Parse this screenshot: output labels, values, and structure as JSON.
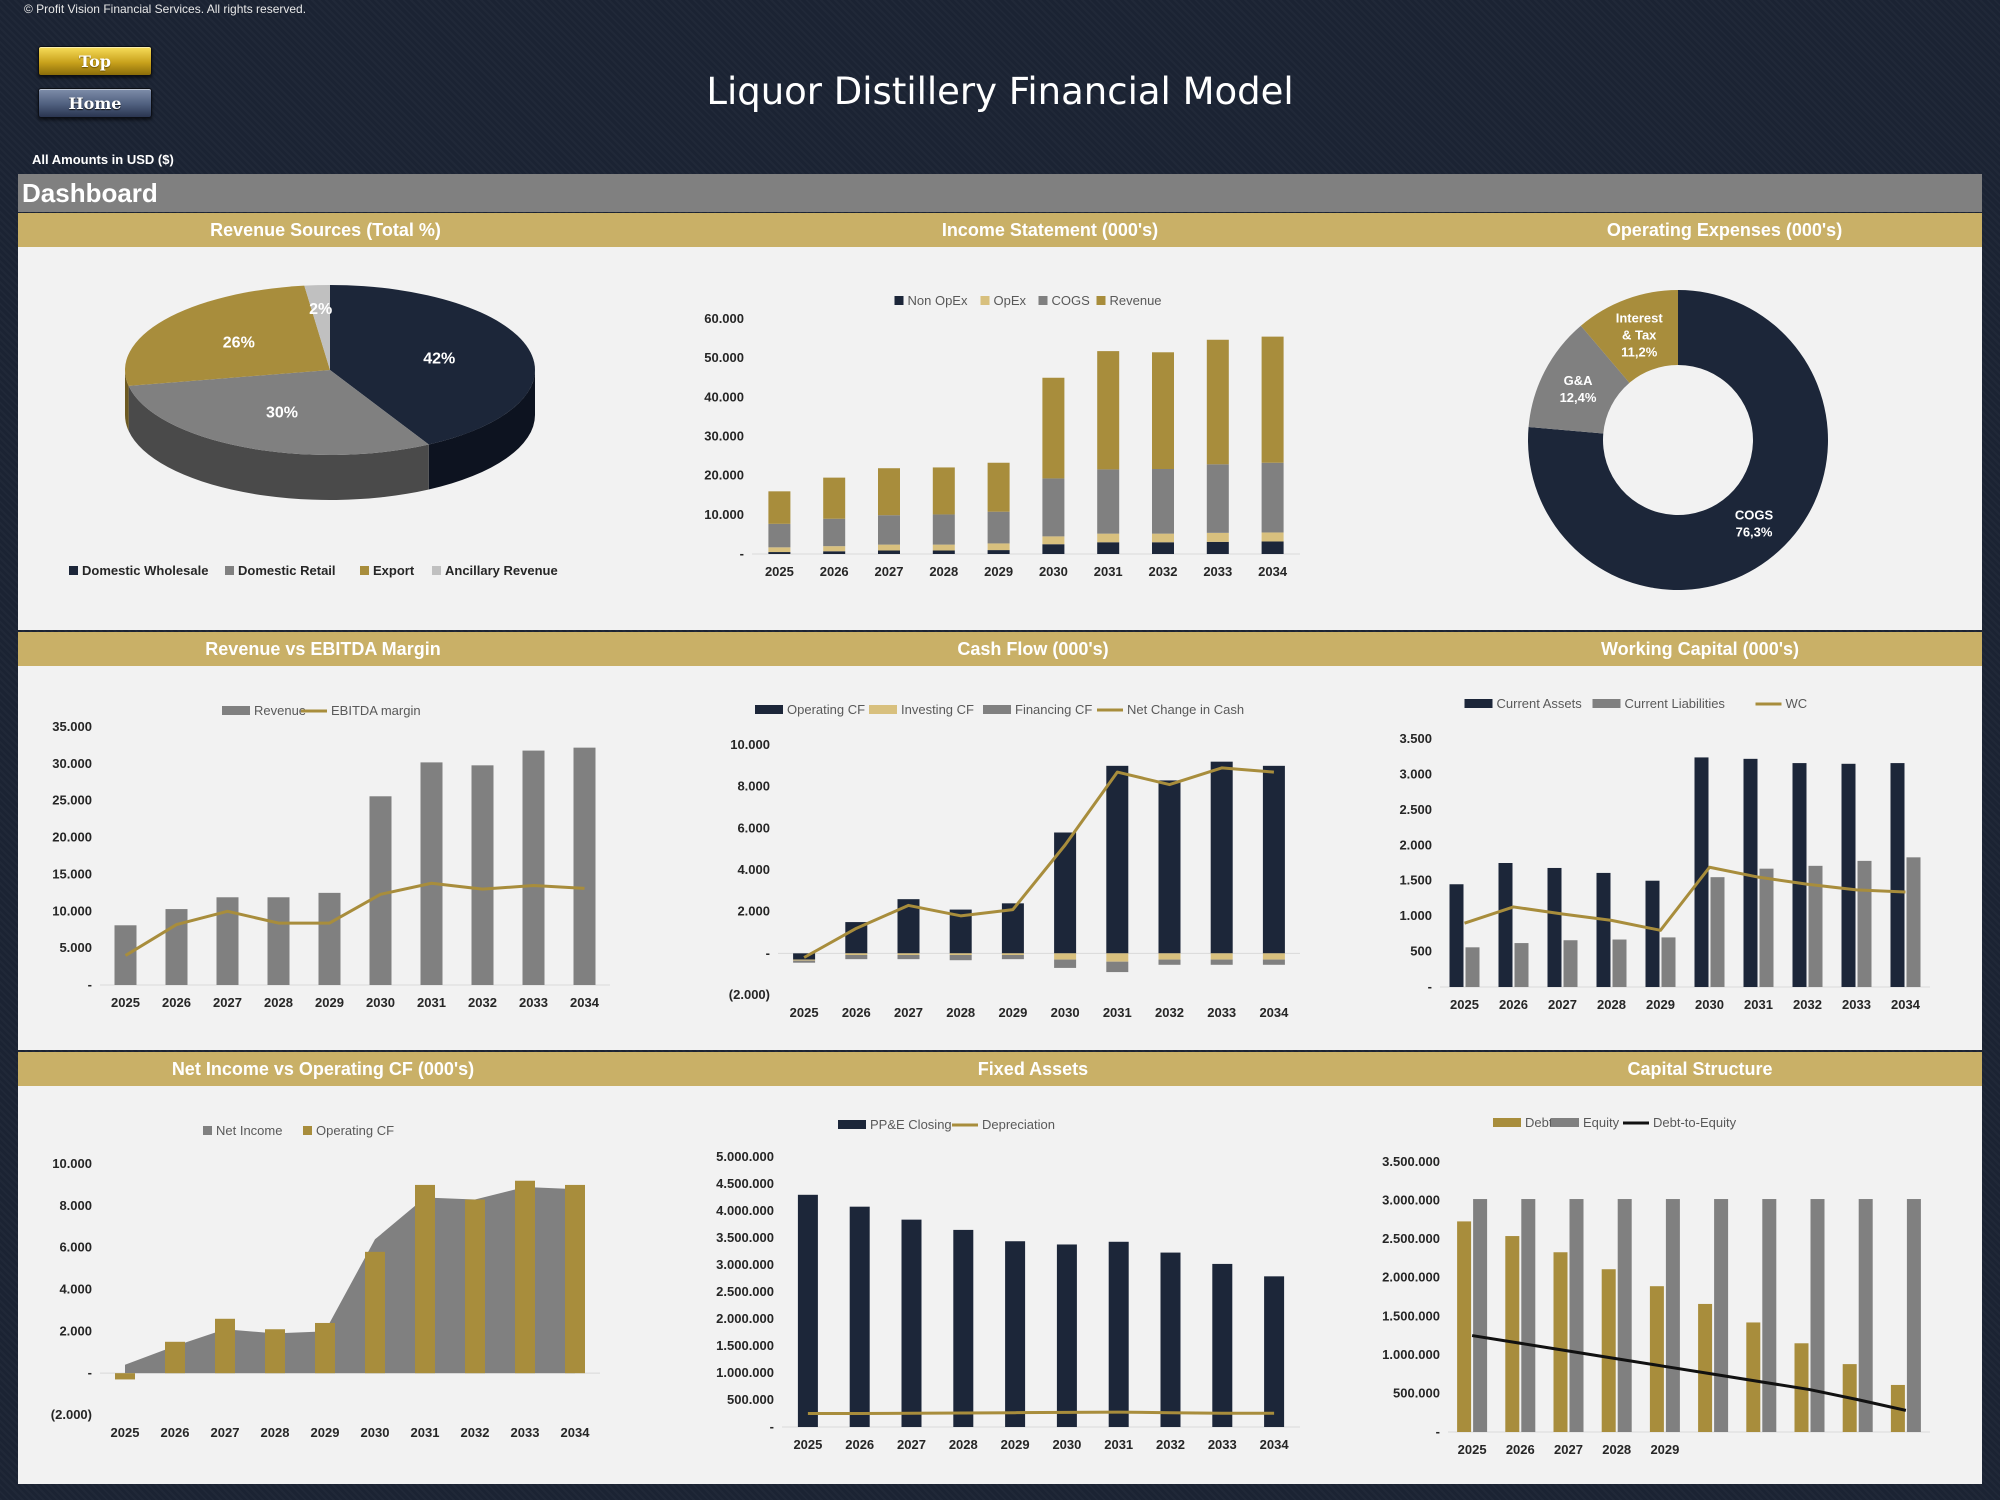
{
  "copyright": "© Profit Vision Financial Services. All rights reserved.",
  "nav": {
    "top_label": "Top",
    "home_label": "Home"
  },
  "title": "Liquor Distillery Financial Model",
  "currency_note": "All Amounts in  USD ($)",
  "dashboard_label": "Dashboard",
  "colors": {
    "navy": "#1c2639",
    "gold": "#a88d3c",
    "gray": "#808080",
    "lightgold": "#d8c07e",
    "lightgray": "#c0c0c0",
    "band": "#c9b067"
  },
  "chart_data": [
    {
      "id": "revenue_sources",
      "type": "pie",
      "title": "Revenue Sources (Total %)",
      "categories": [
        "Domestic Wholesale",
        "Domestic Retail",
        "Export",
        "Ancillary Revenue"
      ],
      "values": [
        42,
        30,
        26,
        2
      ],
      "labels": [
        "42%",
        "30%",
        "26%",
        "2%"
      ],
      "legend": "bottom"
    },
    {
      "id": "income_statement",
      "type": "bar",
      "stacked": true,
      "title": "Income Statement (000's)",
      "categories": [
        "2025",
        "2026",
        "2027",
        "2028",
        "2029",
        "2030",
        "2031",
        "2032",
        "2033",
        "2034"
      ],
      "series": [
        {
          "name": "Non OpEx",
          "values": [
            500,
            700,
            900,
            900,
            1000,
            2500,
            3000,
            3000,
            3100,
            3200
          ]
        },
        {
          "name": "OpEx",
          "values": [
            1200,
            1300,
            1500,
            1500,
            1700,
            2000,
            2200,
            2200,
            2300,
            2300
          ]
        },
        {
          "name": "COGS",
          "values": [
            6000,
            7000,
            7500,
            7700,
            8100,
            14800,
            16400,
            16500,
            17500,
            17800
          ]
        },
        {
          "name": "Revenue",
          "values": [
            8300,
            10500,
            12000,
            12000,
            12500,
            25700,
            30200,
            29800,
            31800,
            32200
          ]
        }
      ],
      "yticks": [
        0,
        10000,
        20000,
        30000,
        40000,
        50000,
        60000
      ],
      "ytick_labels": [
        "-",
        "10.000",
        "20.000",
        "30.000",
        "40.000",
        "50.000",
        "60.000"
      ],
      "ylim": [
        0,
        60000
      ],
      "legend": "top"
    },
    {
      "id": "operating_expenses",
      "type": "pie",
      "donut": true,
      "title": "Operating Expenses (000's)",
      "categories": [
        "COGS",
        "G&A",
        "Interest & Tax"
      ],
      "values": [
        76.3,
        12.4,
        11.2
      ],
      "labels": [
        [
          "COGS",
          "76,3%"
        ],
        [
          "G&A",
          "12,4%"
        ],
        [
          "Interest",
          "& Tax",
          "11,2%"
        ]
      ]
    },
    {
      "id": "revenue_vs_ebitda",
      "type": "bar",
      "title": "Revenue vs EBITDA Margin",
      "categories": [
        "2025",
        "2026",
        "2027",
        "2028",
        "2029",
        "2030",
        "2031",
        "2032",
        "2033",
        "2034"
      ],
      "series": [
        {
          "name": "Revenue",
          "kind": "bar",
          "values": [
            8100,
            10300,
            11900,
            11900,
            12500,
            25600,
            30200,
            29800,
            31800,
            32200
          ]
        },
        {
          "name": "EBITDA margin",
          "kind": "line",
          "values": [
            4000,
            8200,
            10000,
            8400,
            8400,
            12300,
            13800,
            13000,
            13500,
            13100
          ]
        }
      ],
      "yticks": [
        0,
        5000,
        10000,
        15000,
        20000,
        25000,
        30000,
        35000
      ],
      "ytick_labels": [
        "-",
        "5.000",
        "10.000",
        "15.000",
        "20.000",
        "25.000",
        "30.000",
        "35.000"
      ],
      "ylim": [
        0,
        35000
      ],
      "legend": "top"
    },
    {
      "id": "cash_flow",
      "type": "bar",
      "title": "Cash Flow (000's)",
      "categories": [
        "2025",
        "2026",
        "2027",
        "2028",
        "2029",
        "2030",
        "2031",
        "2032",
        "2033",
        "2034"
      ],
      "series": [
        {
          "name": "Operating CF",
          "kind": "bar",
          "values": [
            -300,
            1500,
            2600,
            2100,
            2400,
            5800,
            9000,
            8300,
            9200,
            9000
          ]
        },
        {
          "name": "Investing CF",
          "kind": "bar",
          "values": [
            -50,
            -80,
            -80,
            -80,
            -80,
            -300,
            -400,
            -300,
            -300,
            -300
          ]
        },
        {
          "name": "Financing CF",
          "kind": "bar",
          "values": [
            -100,
            -200,
            -200,
            -250,
            -200,
            -400,
            -500,
            -250,
            -250,
            -250
          ]
        },
        {
          "name": "Net Change in Cash",
          "kind": "line",
          "values": [
            -200,
            1200,
            2300,
            1800,
            2100,
            5200,
            8700,
            8100,
            8900,
            8700
          ]
        }
      ],
      "yticks": [
        -2000,
        0,
        2000,
        4000,
        6000,
        8000,
        10000
      ],
      "ytick_labels": [
        "(2.000)",
        "-",
        "2.000",
        "4.000",
        "6.000",
        "8.000",
        "10.000"
      ],
      "ylim": [
        -2000,
        10000
      ],
      "legend": "top"
    },
    {
      "id": "working_capital",
      "type": "bar",
      "title": "Working Capital (000's)",
      "categories": [
        "2025",
        "2026",
        "2027",
        "2028",
        "2029",
        "2030",
        "2031",
        "2032",
        "2033",
        "2034"
      ],
      "series": [
        {
          "name": "Current Assets",
          "kind": "bar",
          "values": [
            1450,
            1750,
            1680,
            1610,
            1500,
            3240,
            3220,
            3160,
            3150,
            3160
          ]
        },
        {
          "name": "Current Liabilities",
          "kind": "bar",
          "values": [
            560,
            620,
            660,
            670,
            700,
            1550,
            1670,
            1710,
            1780,
            1830
          ]
        },
        {
          "name": "WC",
          "kind": "line",
          "values": [
            900,
            1130,
            1030,
            940,
            800,
            1690,
            1550,
            1450,
            1370,
            1340
          ]
        }
      ],
      "yticks": [
        0,
        500,
        1000,
        1500,
        2000,
        2500,
        3000,
        3500
      ],
      "ytick_labels": [
        "-",
        "500",
        "1.000",
        "1.500",
        "2.000",
        "2.500",
        "3.000",
        "3.500"
      ],
      "ylim": [
        0,
        3500
      ],
      "legend": "top"
    },
    {
      "id": "net_income_vs_ocf",
      "type": "area",
      "title": "Net Income vs Operating CF (000's)",
      "categories": [
        "2025",
        "2026",
        "2027",
        "2028",
        "2029",
        "2030",
        "2031",
        "2032",
        "2033",
        "2034"
      ],
      "series": [
        {
          "name": "Net Income",
          "kind": "area",
          "values": [
            400,
            1300,
            2100,
            1900,
            2000,
            6400,
            8400,
            8300,
            8900,
            8800
          ]
        },
        {
          "name": "Operating CF",
          "kind": "bar",
          "values": [
            -300,
            1500,
            2600,
            2100,
            2400,
            5800,
            9000,
            8300,
            9200,
            9000
          ]
        }
      ],
      "yticks": [
        -2000,
        0,
        2000,
        4000,
        6000,
        8000,
        10000
      ],
      "ytick_labels": [
        "(2.000)",
        "-",
        "2.000",
        "4.000",
        "6.000",
        "8.000",
        "10.000"
      ],
      "ylim": [
        -2000,
        10000
      ],
      "legend": "top"
    },
    {
      "id": "fixed_assets",
      "type": "bar",
      "title": "Fixed Assets",
      "categories": [
        "2025",
        "2026",
        "2027",
        "2028",
        "2029",
        "2030",
        "2031",
        "2032",
        "2033",
        "2034"
      ],
      "series": [
        {
          "name": "PP&E Closing",
          "kind": "bar",
          "values": [
            4300000,
            4080000,
            3840000,
            3650000,
            3440000,
            3380000,
            3430000,
            3230000,
            3020000,
            2790000
          ]
        },
        {
          "name": "Depreciation",
          "kind": "line",
          "values": [
            250000,
            250000,
            255000,
            260000,
            265000,
            270000,
            275000,
            265000,
            255000,
            255000
          ]
        }
      ],
      "yticks": [
        0,
        500000,
        1000000,
        1500000,
        2000000,
        2500000,
        3000000,
        3500000,
        4000000,
        4500000,
        5000000
      ],
      "ytick_labels": [
        "-",
        "500.000",
        "1.000.000",
        "1.500.000",
        "2.000.000",
        "2.500.000",
        "3.000.000",
        "3.500.000",
        "4.000.000",
        "4.500.000",
        "5.000.000"
      ],
      "ylim": [
        0,
        5000000
      ],
      "legend": "top"
    },
    {
      "id": "capital_structure",
      "type": "bar",
      "title": "Capital Structure",
      "categories": [
        "2025",
        "2026",
        "2027",
        "2028",
        "2029",
        "",
        "",
        "",
        "",
        ""
      ],
      "series": [
        {
          "name": "Debt",
          "kind": "bar",
          "values": [
            2730000,
            2540000,
            2330000,
            2110000,
            1890000,
            1660000,
            1420000,
            1150000,
            880000,
            610000
          ]
        },
        {
          "name": "Equity",
          "kind": "bar",
          "values": [
            3020000,
            3020000,
            3020000,
            3020000,
            3020000,
            3020000,
            3020000,
            3020000,
            3020000,
            3020000
          ]
        },
        {
          "name": "Debt-to-Equity",
          "kind": "line",
          "values": [
            1250000,
            1150000,
            1050000,
            950000,
            850000,
            750000,
            650000,
            550000,
            420000,
            280000
          ]
        }
      ],
      "yticks": [
        0,
        500000,
        1000000,
        1500000,
        2000000,
        2500000,
        3000000,
        3500000
      ],
      "ytick_labels": [
        "-",
        "500.000",
        "1.000.000",
        "1.500.000",
        "2.000.000",
        "2.500.000",
        "3.000.000",
        "3.500.000"
      ],
      "ylim": [
        0,
        3500000
      ],
      "legend": "top"
    }
  ]
}
